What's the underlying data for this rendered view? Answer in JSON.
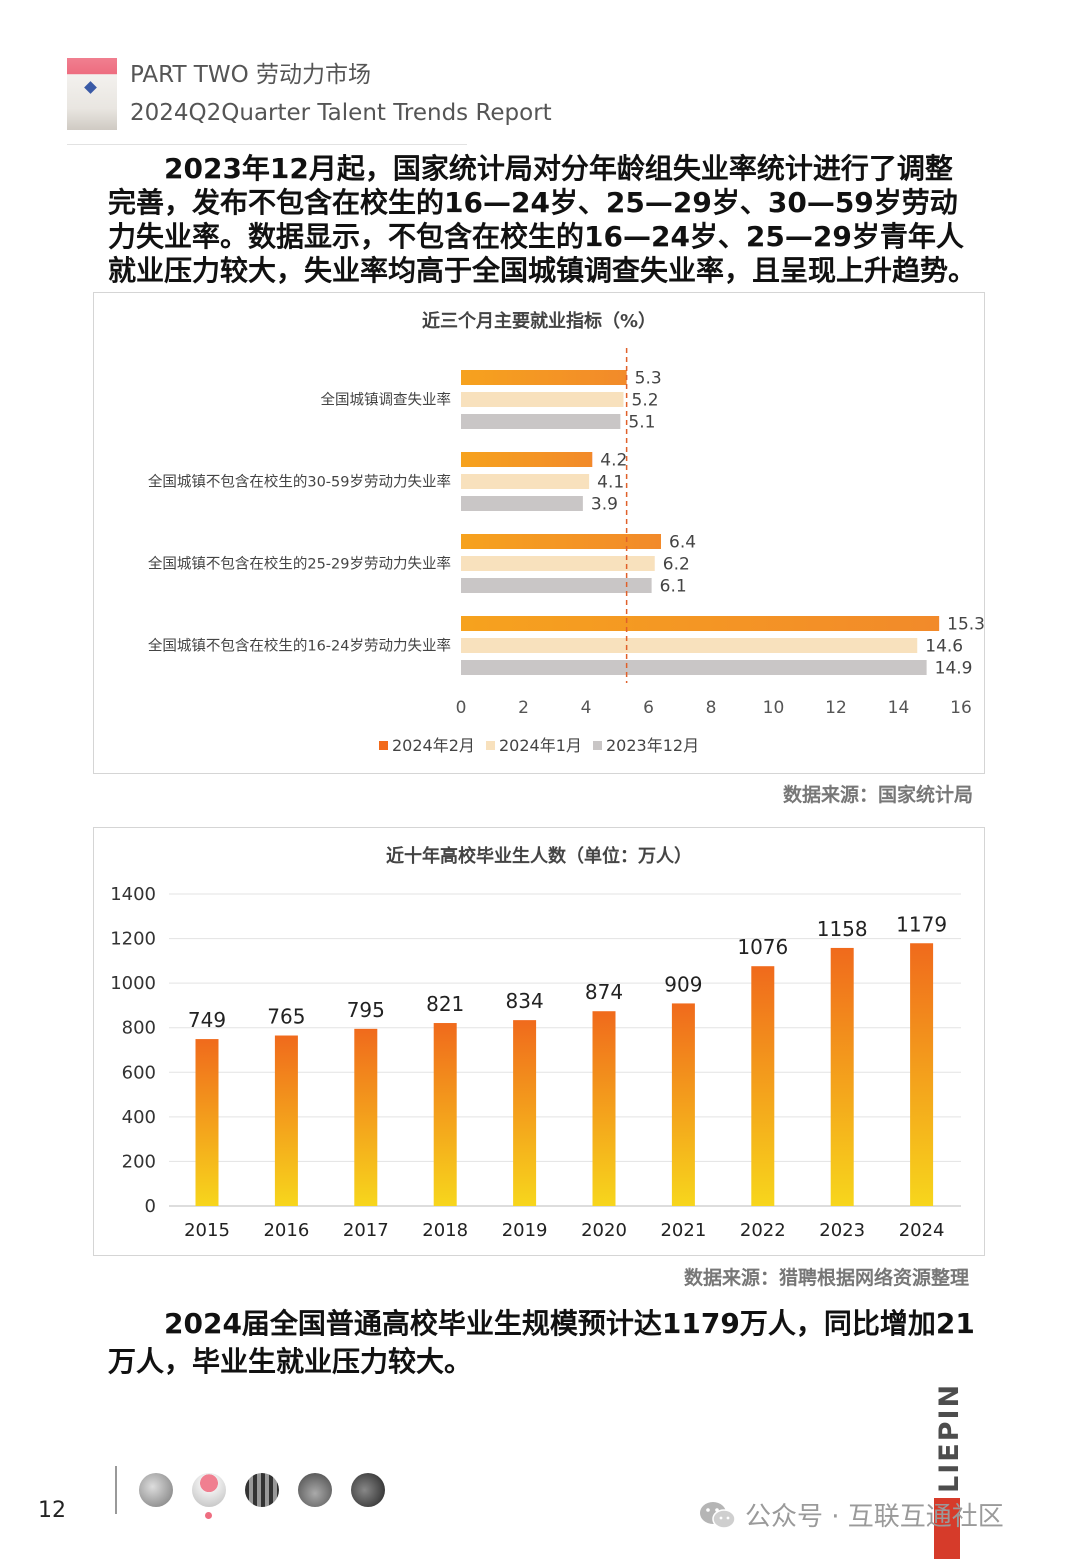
{
  "header": {
    "line1": "PART TWO 劳动力市场",
    "line2": "2024Q2Quarter Talent Trends Report"
  },
  "paragraph1": "2023年12月起，国家统计局对分年龄组失业率统计进行了调整完善，发布不包含在校生的16—24岁、25—29岁、30—59岁劳动力失业率。数据显示，不包含在校生的16—24岁、25—29岁青年人就业压力较大，失业率均高于全国城镇调查失业率，且呈现上升趋势。",
  "chart_data": [
    {
      "type": "bar",
      "orientation": "horizontal",
      "title": "近三个月主要就业指标（%）",
      "categories": [
        "全国城镇调查失业率",
        "全国城镇不包含在校生的30-59岁劳动力失业率",
        "全国城镇不包含在校生的25-29岁劳动力失业率",
        "全国城镇不包含在校生的16-24岁劳动力失业率"
      ],
      "series": [
        {
          "name": "2024年2月",
          "values": [
            5.3,
            4.2,
            6.4,
            15.3
          ],
          "labels": [
            "5.3",
            "4.2",
            "6.4",
            "15.3"
          ],
          "color": "#f28a2a"
        },
        {
          "name": "2024年1月",
          "values": [
            5.2,
            4.1,
            6.2,
            14.6
          ],
          "labels": [
            "5.2",
            "4.1",
            "6.2",
            "14.6"
          ],
          "color": "#f8e1bd"
        },
        {
          "name": "2023年12月",
          "values": [
            5.1,
            3.9,
            6.1,
            14.9
          ],
          "labels": [
            "5.1",
            "3.9",
            "6.1",
            "14.9"
          ],
          "color": "#c9c6c6"
        }
      ],
      "xlim": [
        0,
        16
      ],
      "xticks": [
        "0",
        "2",
        "4",
        "6",
        "8",
        "10",
        "12",
        "14",
        "16"
      ],
      "reference_line": 5.3,
      "legend": "bottom",
      "grid": false
    },
    {
      "type": "bar",
      "orientation": "vertical",
      "title": "近十年高校毕业生人数（单位：万人）",
      "categories": [
        "2015",
        "2016",
        "2017",
        "2018",
        "2019",
        "2020",
        "2021",
        "2022",
        "2023",
        "2024"
      ],
      "values": [
        749,
        765,
        795,
        821,
        834,
        874,
        909,
        1076,
        1158,
        1179
      ],
      "labels": [
        "749",
        "765",
        "795",
        "821",
        "834",
        "874",
        "909",
        "1076",
        "1158",
        "1179"
      ],
      "ylim": [
        0,
        1400
      ],
      "yticks": [
        "0",
        "200",
        "400",
        "600",
        "800",
        "1000",
        "1200",
        "1400"
      ],
      "grid": true,
      "colors": [
        "#f7d61c",
        "#f06a1c"
      ]
    }
  ],
  "source1": "数据来源：国家统计局",
  "source2": "数据来源：猎聘根据网络资源整理",
  "paragraph2": "2024届全国普通高校毕业生规模预计达1179万人，同比增加21万人，毕业生就业压力较大。",
  "footer": {
    "page_number": "12",
    "brand": "LIEPIN",
    "watermark": "公众号 · 互联互通社区"
  }
}
